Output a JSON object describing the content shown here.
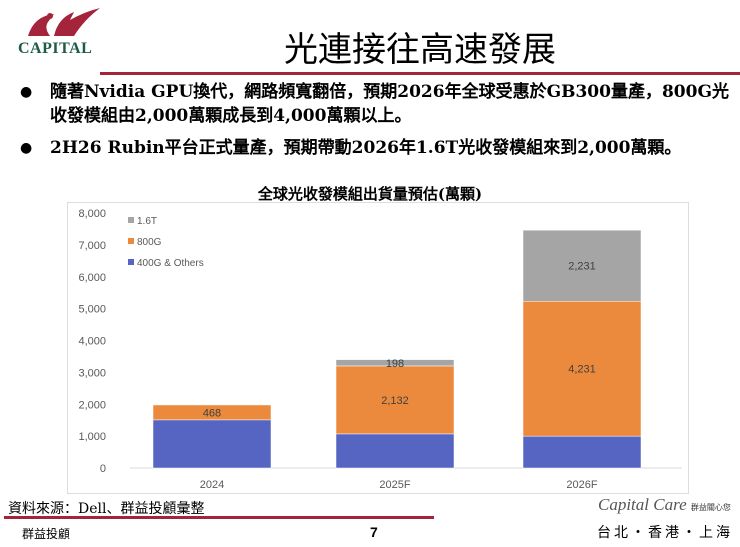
{
  "header": {
    "logo_text": "CAPITAL",
    "title": "光連接往高速發展"
  },
  "bullets": [
    "隨著Nvidia GPU換代，網路頻寬翻倍，預期2026年全球受惠於GB300量產，800G光收發模組由2,000萬顆成長到4,000萬顆以上。",
    "2H26 Rubin平台正式量產，預期帶動2026年1.6T光收發模組來到2,000萬顆。"
  ],
  "chart_data": {
    "type": "bar",
    "stacked": true,
    "title": "全球光收發模組出貨量預估(萬顆)",
    "categories": [
      "2024",
      "2025F",
      "2026F"
    ],
    "series": [
      {
        "name": "400G & Others",
        "values": [
          1510,
          1070,
          1000
        ],
        "color": "#5565c1",
        "labels": [
          null,
          null,
          null
        ]
      },
      {
        "name": "800G",
        "values": [
          468,
          2132,
          4231
        ],
        "color": "#eb8a3d",
        "labels": [
          "468",
          "2,132",
          "4,231"
        ]
      },
      {
        "name": "1.6T",
        "values": [
          0,
          198,
          2231
        ],
        "color": "#a5a5a5",
        "labels": [
          null,
          "198",
          "2,231"
        ]
      }
    ],
    "yticks": [
      "0",
      "1,000",
      "2,000",
      "3,000",
      "4,000",
      "5,000",
      "6,000",
      "7,000",
      "8,000"
    ],
    "ylim": [
      0,
      8000
    ],
    "legend": "top-left",
    "grid": false
  },
  "footer": {
    "source": "資料來源：Dell、群益投顧彙整",
    "company": "群益投顧",
    "page": "7",
    "brand": "Capital Care",
    "brand_sub": "群益關心您",
    "cities": "台北・香港・上海"
  }
}
